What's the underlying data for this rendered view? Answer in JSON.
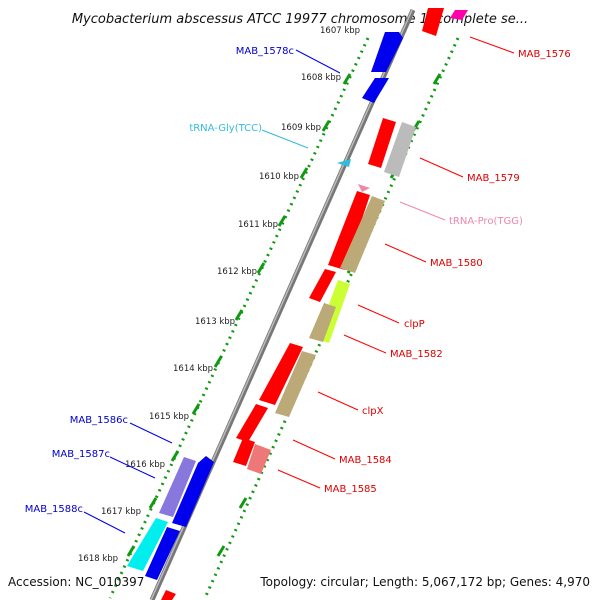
{
  "title": "Mycobacterium abscessus ATCC 19977 chromosome 1, complete se...",
  "accession": "Accession: NC_010397",
  "topology": "Topology: circular; Length: 5,067,172 bp; Genes: 4,970",
  "colors": {
    "red": "#ff0000",
    "blue": "#0000ee",
    "cyan": "#33bbdd",
    "pink": "#ee88aa",
    "backbone": "#777777",
    "scale_dot": "#119911"
  },
  "scale_ticks": [
    "1607 kbp",
    "1608 kbp",
    "1609 kbp",
    "1610 kbp",
    "1611 kbp",
    "1612 kbp",
    "1613 kbp",
    "1614 kbp",
    "1615 kbp",
    "1616 kbp",
    "1617 kbp",
    "1618 kbp"
  ],
  "labels": {
    "left": [
      "MAB_1578c",
      "tRNA-Gly(TCC)",
      "MAB_1586c",
      "MAB_1587c",
      "MAB_1588c"
    ],
    "right": [
      "MAB_1576",
      "MAB_1579",
      "tRNA-Pro(TGG)",
      "MAB_1580",
      "clpP",
      "MAB_1582",
      "clpX",
      "MAB_1584",
      "MAB_1585"
    ]
  }
}
